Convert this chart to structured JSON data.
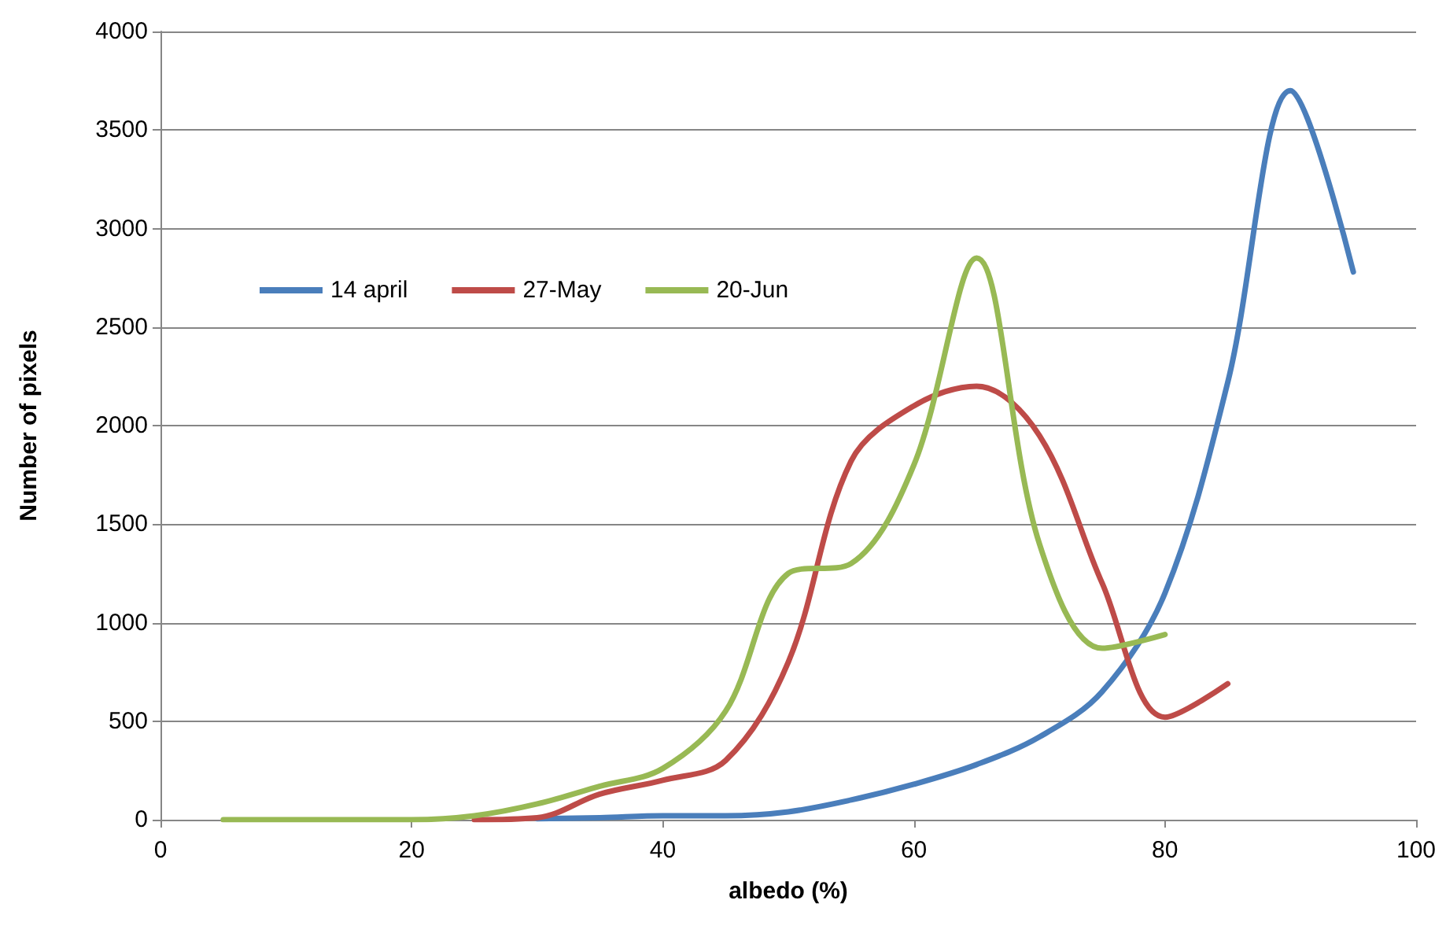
{
  "chart_data": {
    "type": "line",
    "xlabel": "albedo (%)",
    "ylabel": "Number of pixels",
    "x": [
      5,
      10,
      15,
      20,
      25,
      30,
      35,
      40,
      45,
      50,
      55,
      60,
      65,
      70,
      75,
      80
    ],
    "series": [
      {
        "name": "14 april",
        "color": "#4a7ebb",
        "x": [
          30,
          35,
          40,
          45,
          50,
          55,
          60,
          65,
          70,
          75,
          80,
          85,
          90,
          95
        ],
        "values": [
          5,
          10,
          20,
          20,
          40,
          100,
          180,
          280,
          420,
          650,
          1150,
          2220,
          3700,
          2780
        ]
      },
      {
        "name": "27-May",
        "color": "#be4b48",
        "x": [
          25,
          30,
          35,
          40,
          45,
          50,
          55,
          60,
          65,
          70,
          75,
          80,
          85
        ],
        "values": [
          0,
          10,
          130,
          200,
          300,
          800,
          1820,
          2100,
          2200,
          1950,
          1200,
          520,
          690
        ]
      },
      {
        "name": "20-Jun",
        "color": "#98b954",
        "values": [
          0,
          0,
          0,
          0,
          20,
          80,
          170,
          260,
          550,
          1250,
          1300,
          1800,
          2850,
          1400,
          870,
          940
        ]
      }
    ],
    "xlim": [
      0,
      100
    ],
    "xticks": [
      0,
      20,
      40,
      60,
      80,
      100
    ],
    "ylim": [
      0,
      4000
    ],
    "yticks": [
      0,
      500,
      1000,
      1500,
      2000,
      2500,
      3000,
      3500,
      4000
    ],
    "grid": "y",
    "legend": "left",
    "marker": "none",
    "line_style": "solid"
  }
}
